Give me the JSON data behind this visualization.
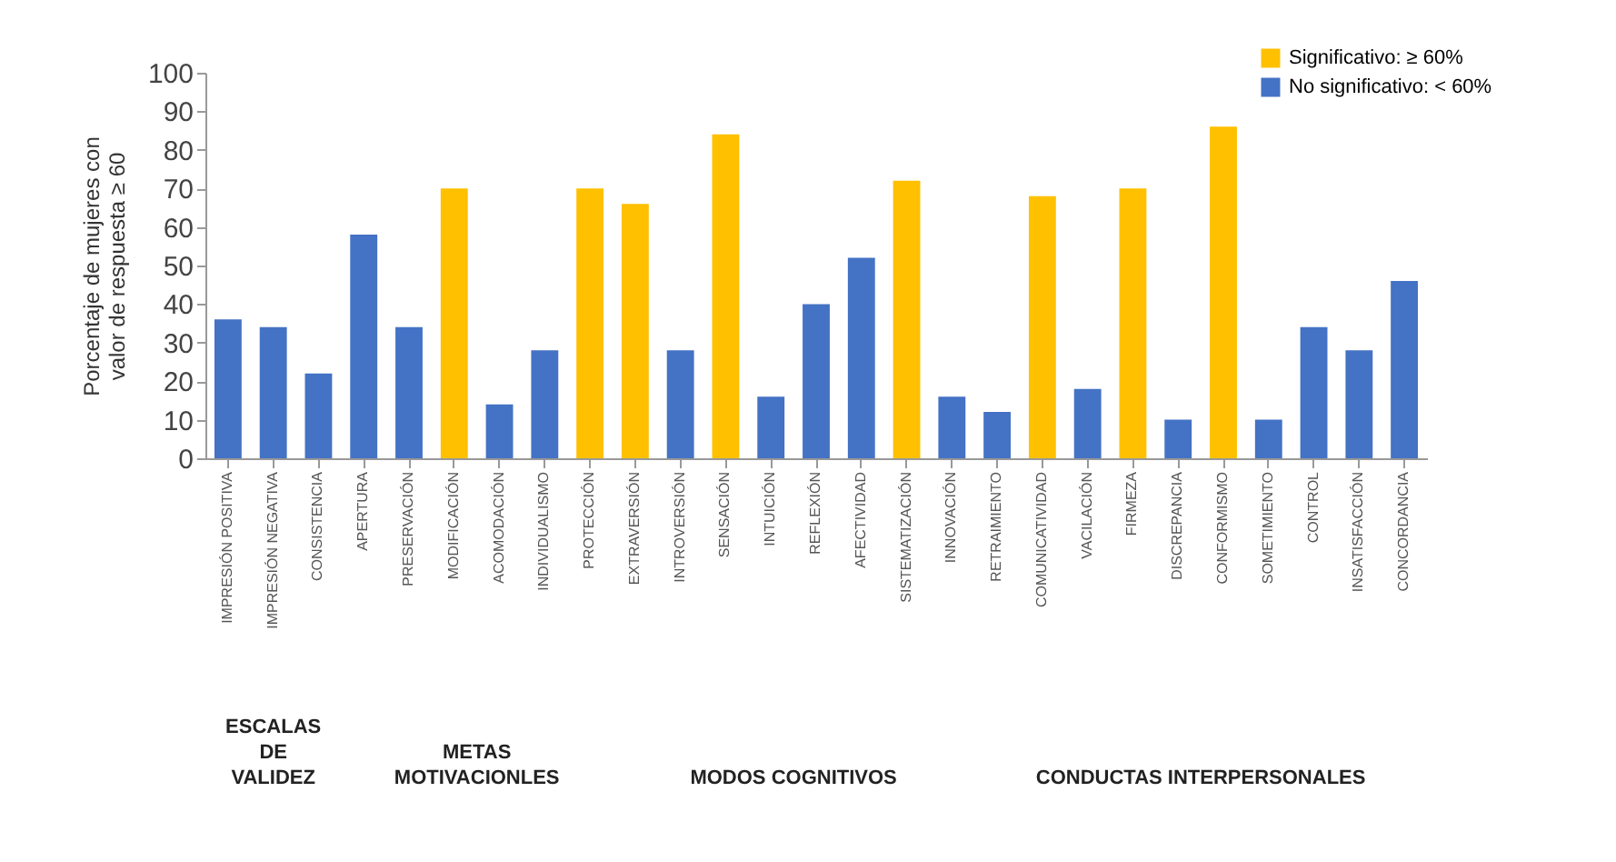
{
  "chart_data": {
    "type": "bar",
    "ylabel": "Porcentaje de mujeres con valor de respuesta ≥ 60",
    "categories": [
      "IMPRESIÓN POSITIVA",
      "IMPRESIÓN NEGATIVA",
      "CONSISTENCIA",
      "APERTURA",
      "PRESERVACIÓN",
      "MODIFICACIÓN",
      "ACOMODACIÓN",
      "INDIVIDUALISMO",
      "PROTECCIÓN",
      "EXTRAVERSIÓN",
      "INTROVERSIÓN",
      "SENSACIÓN",
      "INTUICIÓN",
      "REFLEXIÓN",
      "AFECTIVIDAD",
      "SISTEMATIZACIÓN",
      "INNOVACIÓN",
      "RETRAIMIENTO",
      "COMUNICATIVIDAD",
      "VACILACIÓN",
      "FIRMEZA",
      "DISCREPANCIA",
      "CONFORMISMO",
      "SOMETIMIENTO",
      "CONTROL",
      "INSATISFACCIÓN",
      "CONCORDANCIA"
    ],
    "series": [
      {
        "name": "Significativo: ≥ 60%",
        "color": "#ffc000",
        "values": [
          null,
          null,
          null,
          null,
          null,
          70,
          null,
          null,
          70,
          66,
          null,
          84,
          null,
          null,
          null,
          72,
          null,
          null,
          68,
          null,
          70,
          null,
          86,
          null,
          null,
          null,
          null
        ]
      },
      {
        "name": "No significativo: < 60%",
        "color": "#4472c4",
        "values": [
          36,
          34,
          22,
          58,
          34,
          null,
          14,
          28,
          null,
          null,
          28,
          null,
          16,
          40,
          52,
          null,
          16,
          12,
          null,
          18,
          null,
          10,
          null,
          10,
          34,
          28,
          46
        ]
      }
    ],
    "ylim": [
      0,
      100
    ],
    "yticks": [
      0,
      10,
      20,
      30,
      40,
      50,
      60,
      70,
      80,
      90,
      100
    ],
    "grid": false,
    "legend": "top right",
    "annotations": [
      "ESCALAS DE VALIDEZ",
      "METAS MOTIVACIONLES",
      "MODOS COGNITIVOS",
      "CONDUCTAS INTERPERSONALES"
    ]
  }
}
